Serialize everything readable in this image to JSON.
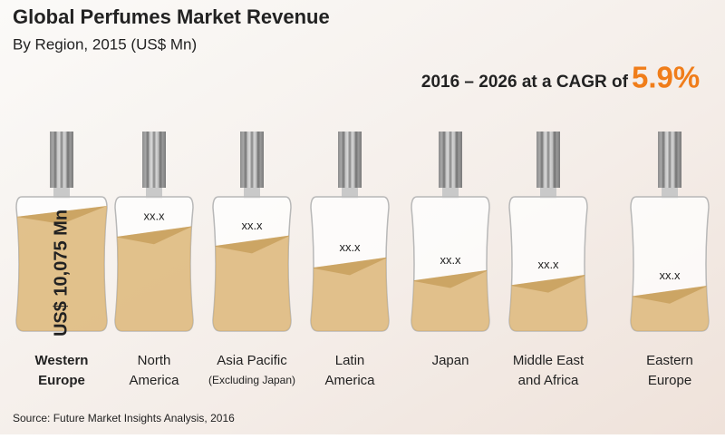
{
  "chart_data": {
    "type": "bottle-bar",
    "title": "Global Perfumes Market Revenue",
    "subtitle": "By Region, 2015 (US$ Mn)",
    "cagr_text": "2016 – 2026 at a CAGR of",
    "cagr_value": "5.9%",
    "source": "Source: Future Market Insights Analysis, 2016",
    "categories": [
      [
        "Western",
        "Europe"
      ],
      [
        "North",
        "America"
      ],
      [
        "Asia Pacific",
        "(Excluding Japan)"
      ],
      [
        "Latin",
        "America"
      ],
      [
        "Japan"
      ],
      [
        "Middle East",
        "and Africa"
      ],
      [
        "Eastern",
        "Europe"
      ]
    ],
    "values": [
      10075,
      8380,
      7600,
      5770,
      4690,
      4300,
      3380
    ],
    "value_labels": [
      "US$ 10,075 Mn",
      "xx.x",
      "xx.x",
      "xx.x",
      "xx.x",
      "xx.x",
      "xx.x"
    ],
    "color": "#d9b26f"
  }
}
